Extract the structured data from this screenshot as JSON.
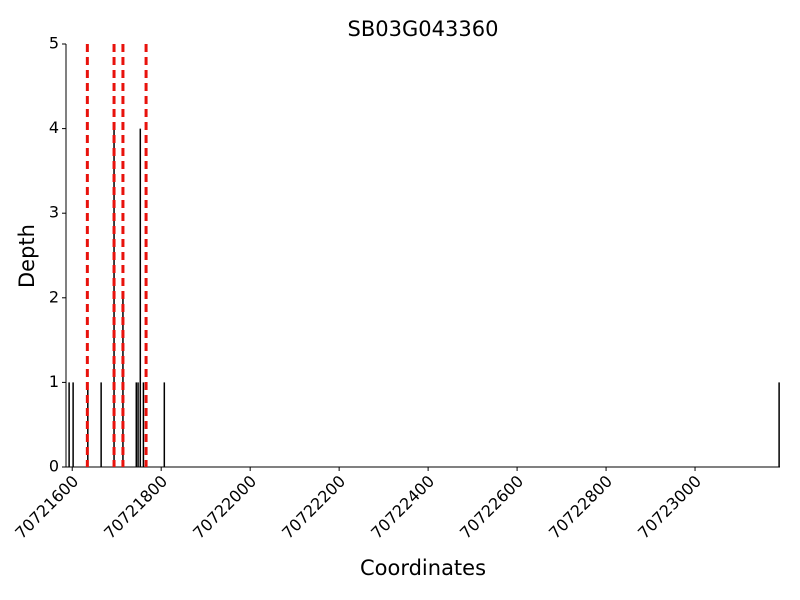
{
  "chart_data": {
    "type": "bar",
    "title": "SB03G043360",
    "xlabel": "Coordinates",
    "ylabel": "Depth",
    "x": [
      70721593,
      70721602,
      70721635,
      70721665,
      70721694,
      70721714,
      70721744,
      70721748,
      70721753,
      70721760,
      70721807,
      70723189
    ],
    "values": [
      1,
      1,
      1,
      1,
      4,
      2,
      1,
      1,
      4,
      1,
      1,
      1
    ],
    "color": "#000000",
    "vlines": [
      70721634,
      70721694,
      70721714,
      70721766
    ],
    "vline_color": "#e8120c",
    "xlim": [
      70721586,
      70723191
    ],
    "xticks": [
      70721600,
      70721800,
      70722000,
      70722200,
      70722400,
      70722600,
      70722800,
      70723000
    ],
    "ylim": [
      0,
      5
    ],
    "yticks": [
      0,
      1,
      2,
      3,
      4,
      5
    ],
    "grid": false
  }
}
